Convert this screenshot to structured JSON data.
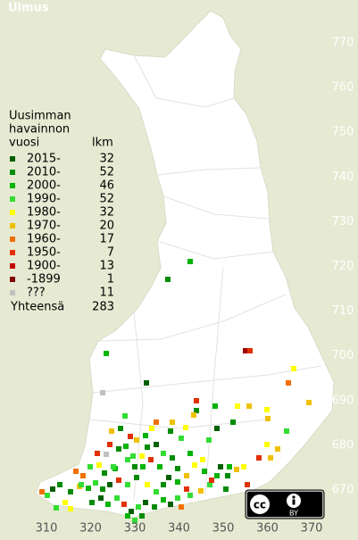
{
  "title": "Ulmus",
  "legend": {
    "heading": [
      "Uusimman",
      "havainnon"
    ],
    "col_year": "vuosi",
    "col_count": "lkm",
    "rows": [
      {
        "label": "2015-",
        "count": 32,
        "color": "#006000"
      },
      {
        "label": "2010-",
        "count": 52,
        "color": "#008c00"
      },
      {
        "label": "2000-",
        "count": 46,
        "color": "#00b400"
      },
      {
        "label": "1990-",
        "count": 52,
        "color": "#33dd33"
      },
      {
        "label": "1980-",
        "count": 32,
        "color": "#ffff00"
      },
      {
        "label": "1970-",
        "count": 20,
        "color": "#f0c000"
      },
      {
        "label": "1960-",
        "count": 17,
        "color": "#f07000"
      },
      {
        "label": "1950-",
        "count": 7,
        "color": "#e03000"
      },
      {
        "label": "1900-",
        "count": 13,
        "color": "#c00000"
      },
      {
        "label": "-1899",
        "count": 1,
        "color": "#800000"
      },
      {
        "label": "???",
        "count": 11,
        "color": "#c0c0c0"
      }
    ],
    "total_label": "Yhteensä",
    "total": 283
  },
  "axes": {
    "xticks": [
      310,
      320,
      330,
      340,
      350,
      360,
      370
    ],
    "yticks": [
      770,
      760,
      750,
      740,
      730,
      720,
      710,
      700,
      690,
      680,
      670
    ]
  },
  "license": {
    "cc": "cc",
    "by": "BY"
  }
}
